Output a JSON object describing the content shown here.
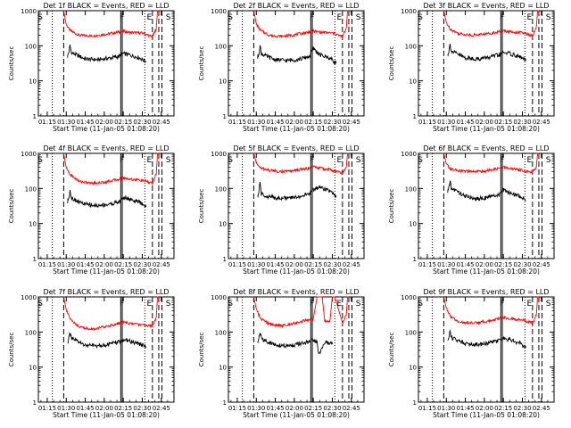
{
  "figure": {
    "background": "#ffffff",
    "axis_color": "#000000",
    "events_color": "#000000",
    "lld_color": "#ff0000"
  },
  "chart_data": [
    {
      "type": "line",
      "title": "Det 1f BLACK = Events, RED = LLD",
      "xlabel": "Start Time (11-Jan-05 01:08:20)",
      "ylabel": "Counts/sec",
      "yscale": "log",
      "ylim": [
        1,
        1000
      ],
      "y_ticks": [
        "1",
        "10",
        "100",
        "1000"
      ],
      "x_ticks": [
        "01:15",
        "01:30",
        "01:45",
        "02:00",
        "02:15",
        "02:30",
        "02:45"
      ],
      "flags": [
        "S",
        "F",
        "E",
        "S"
      ],
      "series": [
        {
          "name": "LLD",
          "color": "#ff0000",
          "x": [
            "01:28",
            "01:30",
            "01:33",
            "01:40",
            "01:50",
            "02:00",
            "02:10",
            "02:15",
            "02:20",
            "02:30",
            "02:38",
            "02:41",
            "02:42",
            "02:43"
          ],
          "values": [
            1000,
            400,
            270,
            200,
            190,
            210,
            240,
            260,
            240,
            230,
            180,
            300,
            1000,
            1000
          ]
        },
        {
          "name": "Events",
          "color": "#000000",
          "x": [
            "01:31",
            "01:32",
            "01:33",
            "01:34",
            "01:38",
            "01:45",
            "01:55",
            "02:05",
            "02:12",
            "02:15",
            "02:20",
            "02:28",
            "02:33"
          ],
          "values": [
            50,
            65,
            100,
            65,
            55,
            42,
            40,
            45,
            50,
            60,
            55,
            45,
            35
          ]
        }
      ]
    },
    {
      "type": "line",
      "title": "Det 2f BLACK = Events, RED = LLD",
      "xlabel": "Start Time (11-Jan-05 01:08:20)",
      "ylabel": "Counts/sec",
      "yscale": "log",
      "ylim": [
        1,
        1000
      ],
      "y_ticks": [
        "1",
        "10",
        "100",
        "1000"
      ],
      "x_ticks": [
        "01:15",
        "01:30",
        "01:45",
        "02:00",
        "02:15",
        "02:30",
        "02:45"
      ],
      "flags": [
        "S",
        "F",
        "E",
        "S"
      ],
      "series": [
        {
          "name": "LLD",
          "color": "#ff0000",
          "x": [
            "01:28",
            "01:30",
            "01:33",
            "01:40",
            "01:50",
            "02:00",
            "02:10",
            "02:15",
            "02:20",
            "02:30",
            "02:38",
            "02:41",
            "02:42",
            "02:43"
          ],
          "values": [
            1000,
            420,
            280,
            200,
            185,
            205,
            240,
            265,
            245,
            230,
            180,
            320,
            1000,
            1000
          ]
        },
        {
          "name": "Events",
          "color": "#000000",
          "x": [
            "01:31",
            "01:32",
            "01:33",
            "01:34",
            "01:38",
            "01:45",
            "01:55",
            "02:05",
            "02:12",
            "02:15",
            "02:20",
            "02:28",
            "02:33"
          ],
          "values": [
            45,
            60,
            100,
            60,
            50,
            40,
            38,
            42,
            50,
            85,
            55,
            45,
            32
          ]
        }
      ]
    },
    {
      "type": "line",
      "title": "Det 3f BLACK = Events, RED = LLD",
      "xlabel": "Start Time (11-Jan-05 01:08:20)",
      "ylabel": "Counts/sec",
      "yscale": "log",
      "ylim": [
        1,
        1000
      ],
      "y_ticks": [
        "1",
        "10",
        "100",
        "1000"
      ],
      "x_ticks": [
        "01:15",
        "01:30",
        "01:45",
        "02:00",
        "02:15",
        "02:30",
        "02:45"
      ],
      "flags": [
        "S",
        "F",
        "E",
        "S"
      ],
      "series": [
        {
          "name": "LLD",
          "color": "#ff0000",
          "x": [
            "01:28",
            "01:30",
            "01:33",
            "01:40",
            "01:50",
            "02:00",
            "02:10",
            "02:15",
            "02:20",
            "02:30",
            "02:38",
            "02:41",
            "02:42",
            "02:43"
          ],
          "values": [
            1000,
            460,
            300,
            220,
            200,
            215,
            245,
            270,
            250,
            235,
            190,
            330,
            1000,
            1000
          ]
        },
        {
          "name": "Events",
          "color": "#000000",
          "x": [
            "01:31",
            "01:32",
            "01:33",
            "01:34",
            "01:38",
            "01:45",
            "01:55",
            "02:05",
            "02:12",
            "02:15",
            "02:20",
            "02:28",
            "02:33"
          ],
          "values": [
            55,
            70,
            110,
            70,
            60,
            45,
            42,
            48,
            55,
            65,
            60,
            48,
            38
          ]
        }
      ]
    },
    {
      "type": "line",
      "title": "Det 4f BLACK = Events, RED = LLD",
      "xlabel": "Start Time (11-Jan-05 01:08:20)",
      "ylabel": "Counts/sec",
      "yscale": "log",
      "ylim": [
        1,
        1000
      ],
      "y_ticks": [
        "1",
        "10",
        "100",
        "1000"
      ],
      "x_ticks": [
        "01:15",
        "01:30",
        "01:45",
        "02:00",
        "02:15",
        "02:30",
        "02:45"
      ],
      "flags": [
        "S",
        "F",
        "E",
        "S"
      ],
      "series": [
        {
          "name": "LLD",
          "color": "#ff0000",
          "x": [
            "01:28",
            "01:30",
            "01:33",
            "01:40",
            "01:50",
            "02:00",
            "02:10",
            "02:15",
            "02:20",
            "02:30",
            "02:38",
            "02:41",
            "02:42",
            "02:43"
          ],
          "values": [
            1000,
            380,
            250,
            160,
            140,
            150,
            180,
            200,
            185,
            170,
            140,
            250,
            1000,
            1000
          ]
        },
        {
          "name": "Events",
          "color": "#000000",
          "x": [
            "01:31",
            "01:32",
            "01:33",
            "01:34",
            "01:38",
            "01:45",
            "01:55",
            "02:05",
            "02:12",
            "02:15",
            "02:20",
            "02:28",
            "02:33"
          ],
          "values": [
            40,
            55,
            90,
            55,
            45,
            35,
            32,
            36,
            42,
            55,
            50,
            40,
            30
          ]
        }
      ]
    },
    {
      "type": "line",
      "title": "Det 5f BLACK = Events, RED = LLD",
      "xlabel": "Start Time (11-Jan-05 01:08:20)",
      "ylabel": "Counts/sec",
      "yscale": "log",
      "ylim": [
        1,
        1000
      ],
      "y_ticks": [
        "1",
        "10",
        "100",
        "1000"
      ],
      "x_ticks": [
        "01:15",
        "01:30",
        "01:45",
        "02:00",
        "02:15",
        "02:30",
        "02:45"
      ],
      "flags": [
        "S",
        "F",
        "E",
        "S"
      ],
      "series": [
        {
          "name": "LLD",
          "color": "#ff0000",
          "x": [
            "01:28",
            "01:30",
            "01:33",
            "01:40",
            "01:50",
            "02:00",
            "02:10",
            "02:15",
            "02:20",
            "02:30",
            "02:38",
            "02:41",
            "02:42",
            "02:43"
          ],
          "values": [
            1000,
            550,
            380,
            330,
            300,
            320,
            370,
            420,
            380,
            330,
            270,
            400,
            1000,
            1000
          ]
        },
        {
          "name": "Events",
          "color": "#000000",
          "x": [
            "01:31",
            "01:32",
            "01:33",
            "01:34",
            "01:38",
            "01:45",
            "01:55",
            "02:05",
            "02:12",
            "02:15",
            "02:20",
            "02:28",
            "02:33"
          ],
          "values": [
            55,
            70,
            160,
            70,
            60,
            55,
            52,
            60,
            70,
            95,
            110,
            85,
            55
          ]
        }
      ]
    },
    {
      "type": "line",
      "title": "Det 6f BLACK = Events, RED = LLD",
      "xlabel": "Start Time (11-Jan-05 01:08:20)",
      "ylabel": "Counts/sec",
      "yscale": "log",
      "ylim": [
        1,
        1000
      ],
      "y_ticks": [
        "1",
        "10",
        "100",
        "1000"
      ],
      "x_ticks": [
        "01:15",
        "01:30",
        "01:45",
        "02:00",
        "02:15",
        "02:30",
        "02:45"
      ],
      "flags": [
        "S",
        "F",
        "E",
        "S"
      ],
      "series": [
        {
          "name": "LLD",
          "color": "#ff0000",
          "x": [
            "01:28",
            "01:30",
            "01:33",
            "01:40",
            "01:50",
            "02:00",
            "02:10",
            "02:15",
            "02:20",
            "02:30",
            "02:38",
            "02:41",
            "02:42",
            "02:43"
          ],
          "values": [
            1000,
            500,
            360,
            320,
            300,
            310,
            360,
            400,
            370,
            330,
            290,
            400,
            1000,
            1000
          ]
        },
        {
          "name": "Events",
          "color": "#000000",
          "x": [
            "01:31",
            "01:32",
            "01:33",
            "01:34",
            "01:38",
            "01:45",
            "01:55",
            "02:05",
            "02:12",
            "02:15",
            "02:20",
            "02:28",
            "02:33"
          ],
          "values": [
            80,
            100,
            160,
            100,
            85,
            60,
            50,
            58,
            68,
            90,
            75,
            60,
            45
          ]
        }
      ]
    },
    {
      "type": "line",
      "title": "Det 7f BLACK = Events, RED = LLD",
      "xlabel": "Start Time (11-Jan-05 01:08:20)",
      "ylabel": "Counts/sec",
      "yscale": "log",
      "ylim": [
        1,
        1000
      ],
      "y_ticks": [
        "1",
        "10",
        "100",
        "1000"
      ],
      "x_ticks": [
        "01:15",
        "01:30",
        "01:45",
        "02:00",
        "02:15",
        "02:30",
        "02:45"
      ],
      "flags": [
        "S",
        "F",
        "E",
        "S"
      ],
      "series": [
        {
          "name": "LLD",
          "color": "#ff0000",
          "x": [
            "01:28",
            "01:30",
            "01:33",
            "01:40",
            "01:50",
            "02:00",
            "02:10",
            "02:15",
            "02:20",
            "02:30",
            "02:38",
            "02:41",
            "02:42",
            "02:43"
          ],
          "values": [
            1000,
            430,
            240,
            140,
            120,
            140,
            170,
            190,
            175,
            160,
            150,
            260,
            1000,
            1000
          ]
        },
        {
          "name": "Events",
          "color": "#000000",
          "x": [
            "01:31",
            "01:32",
            "01:33",
            "01:34",
            "01:38",
            "01:45",
            "01:55",
            "02:05",
            "02:12",
            "02:15",
            "02:20",
            "02:28",
            "02:33"
          ],
          "values": [
            50,
            65,
            100,
            65,
            55,
            42,
            40,
            46,
            52,
            60,
            55,
            45,
            38
          ]
        }
      ]
    },
    {
      "type": "line",
      "title": "Det 8f BLACK = Events, RED = LLD",
      "xlabel": "Start Time (11-Jan-05 01:08:20)",
      "ylabel": "Counts/sec",
      "yscale": "log",
      "ylim": [
        1,
        1000
      ],
      "y_ticks": [
        "1",
        "10",
        "100",
        "1000"
      ],
      "x_ticks": [
        "01:15",
        "01:30",
        "01:45",
        "02:00",
        "02:15",
        "02:30",
        "02:45"
      ],
      "flags": [
        "S",
        "F",
        "E",
        "S"
      ],
      "series": [
        {
          "name": "LLD",
          "color": "#ff0000",
          "x": [
            "01:28",
            "01:30",
            "01:33",
            "01:40",
            "01:50",
            "02:00",
            "02:10",
            "02:15",
            "02:18",
            "02:22",
            "02:24",
            "02:28",
            "02:30",
            "02:32",
            "02:38",
            "02:41",
            "02:42",
            "02:43"
          ],
          "values": [
            1000,
            450,
            250,
            170,
            150,
            180,
            220,
            240,
            1000,
            1000,
            200,
            190,
            1000,
            1000,
            180,
            300,
            1000,
            1000
          ]
        },
        {
          "name": "Events",
          "color": "#000000",
          "x": [
            "01:31",
            "01:32",
            "01:33",
            "01:34",
            "01:38",
            "01:45",
            "01:55",
            "02:05",
            "02:12",
            "02:15",
            "02:18",
            "02:19",
            "02:24",
            "02:28",
            "02:30"
          ],
          "values": [
            50,
            65,
            100,
            65,
            55,
            42,
            40,
            46,
            52,
            60,
            50,
            22,
            50,
            48,
            45
          ]
        }
      ]
    },
    {
      "type": "line",
      "title": "Det 9f BLACK = Events, RED = LLD",
      "xlabel": "Start Time (11-Jan-05 01:08:20)",
      "ylabel": "Counts/sec",
      "yscale": "log",
      "ylim": [
        1,
        1000
      ],
      "y_ticks": [
        "1",
        "10",
        "100",
        "1000"
      ],
      "x_ticks": [
        "01:15",
        "01:30",
        "01:45",
        "02:00",
        "02:15",
        "02:30",
        "02:45"
      ],
      "flags": [
        "S",
        "F",
        "E",
        "S"
      ],
      "series": [
        {
          "name": "LLD",
          "color": "#ff0000",
          "x": [
            "01:28",
            "01:30",
            "01:33",
            "01:40",
            "01:50",
            "02:00",
            "02:10",
            "02:15",
            "02:20",
            "02:30",
            "02:38",
            "02:41",
            "02:42",
            "02:43"
          ],
          "values": [
            1000,
            470,
            280,
            190,
            180,
            195,
            230,
            260,
            240,
            220,
            180,
            300,
            1000,
            1000
          ]
        },
        {
          "name": "Events",
          "color": "#000000",
          "x": [
            "01:31",
            "01:32",
            "01:33",
            "01:34",
            "01:38",
            "01:45",
            "01:55",
            "02:05",
            "02:12",
            "02:15",
            "02:20",
            "02:28",
            "02:33"
          ],
          "values": [
            55,
            70,
            110,
            70,
            60,
            48,
            44,
            50,
            58,
            65,
            60,
            48,
            36
          ]
        }
      ]
    }
  ]
}
